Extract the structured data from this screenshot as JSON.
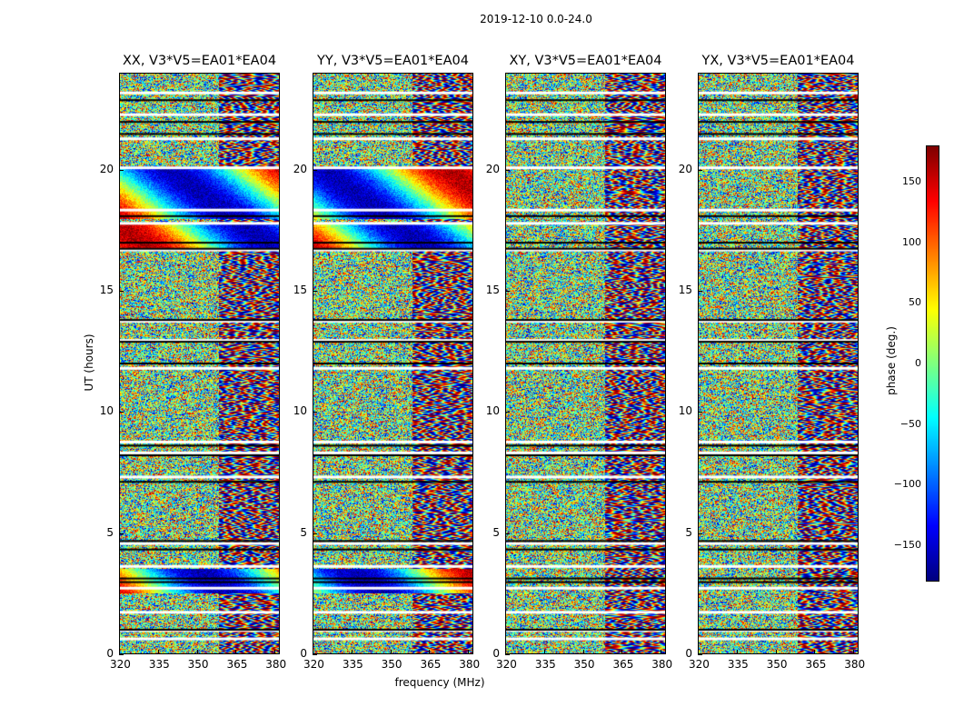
{
  "chart_data": {
    "type": "heatmap",
    "title": "2019-12-10 0.0-24.0",
    "xlabel": "frequency (MHz)",
    "ylabel": "UT (hours)",
    "xlim": [
      320,
      382
    ],
    "ylim": [
      0,
      24
    ],
    "xticks": [
      "320",
      "335",
      "350",
      "365",
      "380"
    ],
    "yticks": [
      "0",
      "5",
      "10",
      "15",
      "20"
    ],
    "panels": [
      {
        "title": "XX, V3*V5=EA01*EA04",
        "pol": "XX"
      },
      {
        "title": "YY, V3*V5=EA01*EA04",
        "pol": "YY"
      },
      {
        "title": "XY, V3*V5=EA01*EA04",
        "pol": "XY"
      },
      {
        "title": "YX, V3*V5=EA01*EA04",
        "pol": "YX"
      }
    ],
    "colorbar": {
      "label": "phase (deg.)",
      "range": [
        -180,
        180
      ],
      "ticks": [
        "150",
        "100",
        "50",
        "0",
        "−50",
        "−100",
        "−150"
      ],
      "colormap": "jet"
    }
  }
}
